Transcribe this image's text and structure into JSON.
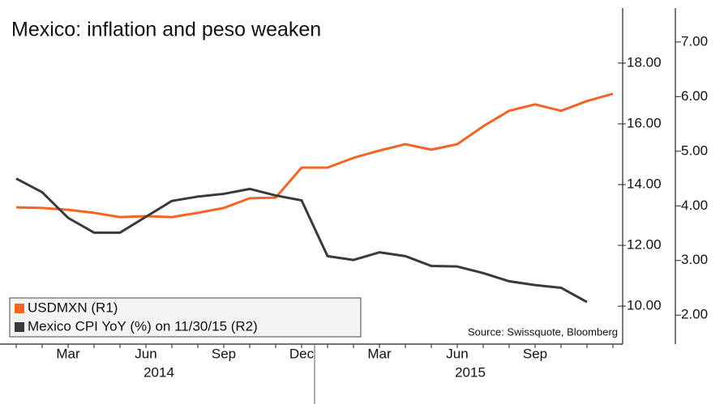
{
  "chart_data": {
    "type": "line",
    "title": "Mexico: inflation and peso weaken",
    "source": "Source: Swissquote, Bloomberg",
    "categories": [
      null,
      null,
      "Mar",
      null,
      null,
      "Jun",
      null,
      null,
      "Sep",
      null,
      null,
      "Dec",
      null,
      null,
      "Mar",
      null,
      null,
      "Jun",
      null,
      null,
      "Sep",
      null,
      null,
      null
    ],
    "year_labels": [
      "2014",
      "2015"
    ],
    "series": [
      {
        "name": "USDMXN (R1)",
        "color": "#f26522",
        "axis": "y",
        "values": [
          13.25,
          13.23,
          13.17,
          13.07,
          12.93,
          12.96,
          12.93,
          13.07,
          13.23,
          13.55,
          13.57,
          14.56,
          14.56,
          14.88,
          15.12,
          15.33,
          15.15,
          15.33,
          15.92,
          16.43,
          16.64,
          16.43,
          16.75,
          16.99
        ]
      },
      {
        "name": "Mexico CPI YoY (%) on 11/30/15 (R2)",
        "color": "#3a3a3a",
        "axis": "y2",
        "values": [
          4.5,
          4.25,
          3.78,
          3.51,
          3.51,
          3.8,
          4.09,
          4.17,
          4.22,
          4.31,
          4.19,
          4.1,
          3.08,
          3.01,
          3.15,
          3.08,
          2.9,
          2.89,
          2.77,
          2.62,
          2.55,
          2.5,
          2.24,
          null
        ]
      }
    ],
    "ylim": [
      8.75,
      19.81
    ],
    "yticks": [
      {
        "value": 10,
        "label": "10.00"
      },
      {
        "value": 12,
        "label": "12.00"
      },
      {
        "value": 14,
        "label": "14.00"
      },
      {
        "value": 16,
        "label": "16.00"
      },
      {
        "value": 18,
        "label": "18.00"
      }
    ],
    "y2lim": [
      1.47,
      7.62
    ],
    "y2ticks": [
      {
        "value": 2,
        "label": "2.00"
      },
      {
        "value": 3,
        "label": "3.00"
      },
      {
        "value": 4,
        "label": "4.00"
      },
      {
        "value": 5,
        "label": "5.00"
      },
      {
        "value": 6,
        "label": "6.00"
      },
      {
        "value": 7,
        "label": "7.00"
      }
    ],
    "legend": "bottom-left"
  }
}
